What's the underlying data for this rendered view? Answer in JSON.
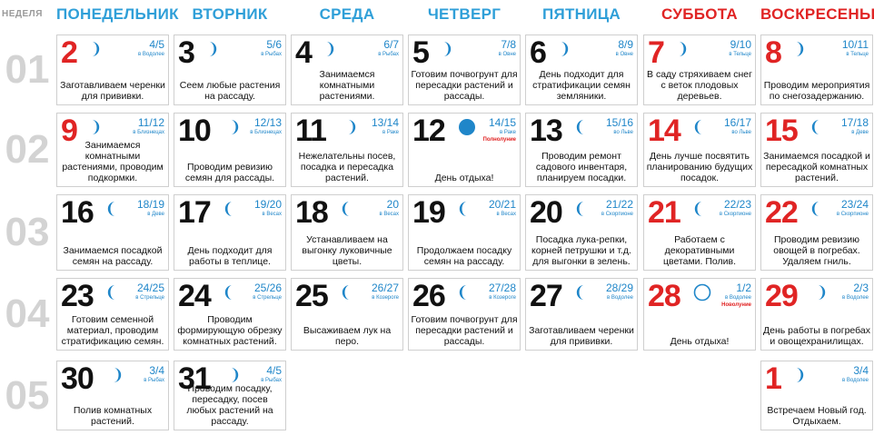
{
  "header": {
    "week_label": "НЕДЕЛЯ"
  },
  "days": [
    {
      "key": "mon",
      "label": "ПОНЕДЕЛЬНИК"
    },
    {
      "key": "tue",
      "label": "ВТОРНИК"
    },
    {
      "key": "wed",
      "label": "СРЕДА"
    },
    {
      "key": "thu",
      "label": "ЧЕТВЕРГ"
    },
    {
      "key": "fri",
      "label": "ПЯТНИЦА"
    },
    {
      "key": "sat",
      "label": "СУББОТА"
    },
    {
      "key": "sun",
      "label": "ВОСКРЕСЕНЬЕ"
    }
  ],
  "colors": {
    "weekday_header": "#2f9fd8",
    "weekend": "#e02424",
    "moon": "#1f86c9",
    "week_number": "#d3d3d3"
  },
  "weeks": [
    {
      "number": "01",
      "cells": [
        {
          "date": "2",
          "color": "#e02424",
          "moon": "waxing-crescent",
          "lunar_day": "4/5",
          "sign": "в Водолее",
          "text": "Заготавливаем черенки для прививки."
        },
        {
          "date": "3",
          "color": "#111111",
          "moon": "waxing-crescent",
          "lunar_day": "5/6",
          "sign": "в Рыбах",
          "text": "Сеем любые растения на рассаду."
        },
        {
          "date": "4",
          "color": "#111111",
          "moon": "waxing-crescent",
          "lunar_day": "6/7",
          "sign": "в Рыбах",
          "text": "Занимаемся комнатными растениями."
        },
        {
          "date": "5",
          "color": "#111111",
          "moon": "waxing-crescent",
          "lunar_day": "7/8",
          "sign": "в Овне",
          "text": "Готовим почвогрунт для пересадки растений и рассады."
        },
        {
          "date": "6",
          "color": "#111111",
          "moon": "waxing-crescent",
          "lunar_day": "8/9",
          "sign": "в Овне",
          "text": "День подходит для стратификации семян земляники."
        },
        {
          "date": "7",
          "color": "#e02424",
          "moon": "waxing-crescent",
          "lunar_day": "9/10",
          "sign": "в Тельце",
          "text": "В саду стряхиваем снег с веток плодовых деревьев."
        },
        {
          "date": "8",
          "color": "#e02424",
          "moon": "waxing-crescent",
          "lunar_day": "10/11",
          "sign": "в Тельце",
          "text": "Проводим мероприятия по снегозадержанию."
        }
      ]
    },
    {
      "number": "02",
      "cells": [
        {
          "date": "9",
          "color": "#e02424",
          "moon": "waxing-crescent",
          "lunar_day": "11/12",
          "sign": "в Близнецах",
          "text": "Занимаемся комнатными растениями, проводим подкормки."
        },
        {
          "date": "10",
          "color": "#111111",
          "moon": "waxing-crescent",
          "lunar_day": "12/13",
          "sign": "в Близнецах",
          "text": "Проводим ревизию семян для рассады."
        },
        {
          "date": "11",
          "color": "#111111",
          "moon": "waxing-crescent",
          "lunar_day": "13/14",
          "sign": "в Раке",
          "text": "Нежелательны посев, посадка и пересадка растений."
        },
        {
          "date": "12",
          "color": "#111111",
          "moon": "full",
          "lunar_day": "14/15",
          "sign": "в Раке",
          "event": "Полнолуние",
          "text": "День отдыха!"
        },
        {
          "date": "13",
          "color": "#111111",
          "moon": "waning-crescent",
          "lunar_day": "15/16",
          "sign": "во Льве",
          "text": "Проводим ремонт садового инвентаря, планируем посадки."
        },
        {
          "date": "14",
          "color": "#e02424",
          "moon": "waning-crescent",
          "lunar_day": "16/17",
          "sign": "во Льве",
          "text": "День лучше посвятить планированию будущих посадок."
        },
        {
          "date": "15",
          "color": "#e02424",
          "moon": "waning-crescent",
          "lunar_day": "17/18",
          "sign": "в Деве",
          "text": "Занимаемся посадкой и пересадкой комнатных растений."
        }
      ]
    },
    {
      "number": "03",
      "cells": [
        {
          "date": "16",
          "color": "#111111",
          "moon": "waning-crescent",
          "lunar_day": "18/19",
          "sign": "в Деве",
          "text": "Занимаемся посадкой семян на рассаду."
        },
        {
          "date": "17",
          "color": "#111111",
          "moon": "waning-crescent",
          "lunar_day": "19/20",
          "sign": "в Весах",
          "text": "День подходит для работы в теплице."
        },
        {
          "date": "18",
          "color": "#111111",
          "moon": "waning-crescent",
          "lunar_day": "20",
          "sign": "в Весах",
          "text": "Устанавливаем на выгонку луковичные цветы."
        },
        {
          "date": "19",
          "color": "#111111",
          "moon": "waning-crescent",
          "lunar_day": "20/21",
          "sign": "в Весах",
          "text": "Продолжаем посадку семян на рассаду."
        },
        {
          "date": "20",
          "color": "#111111",
          "moon": "waning-crescent",
          "lunar_day": "21/22",
          "sign": "в Скорпионе",
          "text": "Посадка лука-репки, корней петрушки и т.д. для выгонки в зелень."
        },
        {
          "date": "21",
          "color": "#e02424",
          "moon": "waning-crescent",
          "lunar_day": "22/23",
          "sign": "в Скорпионе",
          "text": "Работаем с декоративными цветами. Полив."
        },
        {
          "date": "22",
          "color": "#e02424",
          "moon": "waning-crescent",
          "lunar_day": "23/24",
          "sign": "в Скорпионе",
          "text": "Проводим ревизию овощей в погребах. Удаляем гниль."
        }
      ]
    },
    {
      "number": "04",
      "cells": [
        {
          "date": "23",
          "color": "#111111",
          "moon": "waning-crescent",
          "lunar_day": "24/25",
          "sign": "в Стрельце",
          "text": "Готовим семенной материал, проводим стратификацию семян."
        },
        {
          "date": "24",
          "color": "#111111",
          "moon": "waning-crescent",
          "lunar_day": "25/26",
          "sign": "в Стрельце",
          "text": "Проводим формирующую обрезку комнатных растений."
        },
        {
          "date": "25",
          "color": "#111111",
          "moon": "waning-crescent",
          "lunar_day": "26/27",
          "sign": "в Козероге",
          "text": "Высаживаем лук на перо."
        },
        {
          "date": "26",
          "color": "#111111",
          "moon": "waning-crescent",
          "lunar_day": "27/28",
          "sign": "в Козероге",
          "text": "Готовим почвогрунт для пересадки растений и рассады."
        },
        {
          "date": "27",
          "color": "#111111",
          "moon": "waning-crescent",
          "lunar_day": "28/29",
          "sign": "в Водолее",
          "text": "Заготавливаем черенки для прививки."
        },
        {
          "date": "28",
          "color": "#e02424",
          "moon": "new",
          "lunar_day": "1/2",
          "sign": "в Водолее",
          "event": "Новолуние",
          "text": "День отдыха!"
        },
        {
          "date": "29",
          "color": "#e02424",
          "moon": "waxing-crescent",
          "lunar_day": "2/3",
          "sign": "в Водолее",
          "text": "День работы в погребах и овощехранилищах."
        }
      ]
    },
    {
      "number": "05",
      "cells": [
        {
          "date": "30",
          "color": "#111111",
          "moon": "waxing-crescent",
          "lunar_day": "3/4",
          "sign": "в Рыбах",
          "text": "Полив комнатных растений."
        },
        {
          "date": "31",
          "color": "#111111",
          "moon": "waxing-crescent",
          "lunar_day": "4/5",
          "sign": "в Рыбах",
          "text": "Проводим посадку, пересадку, посев любых растений на рассаду."
        },
        null,
        null,
        null,
        null,
        {
          "date": "1",
          "color": "#e02424",
          "moon": "waxing-crescent",
          "lunar_day": "3/4",
          "sign": "в Водолее",
          "text": "Встречаем Новый год. Отдыхаем."
        }
      ]
    }
  ]
}
